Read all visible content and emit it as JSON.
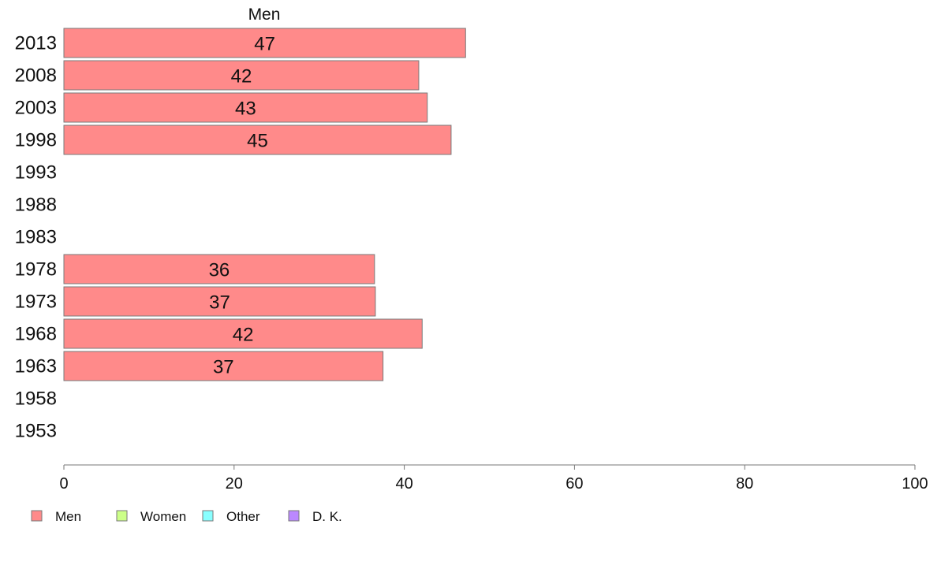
{
  "chart_data": {
    "type": "bar",
    "orientation": "horizontal",
    "title": "Men",
    "xlabel": "",
    "ylabel": "",
    "xlim": [
      0,
      100
    ],
    "x_ticks": [
      0,
      20,
      40,
      60,
      80,
      100
    ],
    "grid": false,
    "legend_position": "bottom-left",
    "categories": [
      "2013",
      "2008",
      "2003",
      "1998",
      "1993",
      "1988",
      "1983",
      "1978",
      "1973",
      "1968",
      "1963",
      "1958",
      "1953"
    ],
    "series": [
      {
        "name": "Men",
        "color": "#ff8a8a",
        "values": [
          47.2,
          41.7,
          42.7,
          45.5,
          null,
          null,
          null,
          36.5,
          36.6,
          42.1,
          37.5,
          null,
          null
        ],
        "labels": [
          "47",
          "42",
          "43",
          "45",
          "",
          "",
          "",
          "36",
          "37",
          "42",
          "37",
          "",
          ""
        ]
      }
    ],
    "legend": [
      {
        "name": "Men",
        "color": "#ff8a8a"
      },
      {
        "name": "Women",
        "color": "#ccff88"
      },
      {
        "name": "Other",
        "color": "#88ffff"
      },
      {
        "name": "D. K.",
        "color": "#bb88ff"
      }
    ]
  }
}
